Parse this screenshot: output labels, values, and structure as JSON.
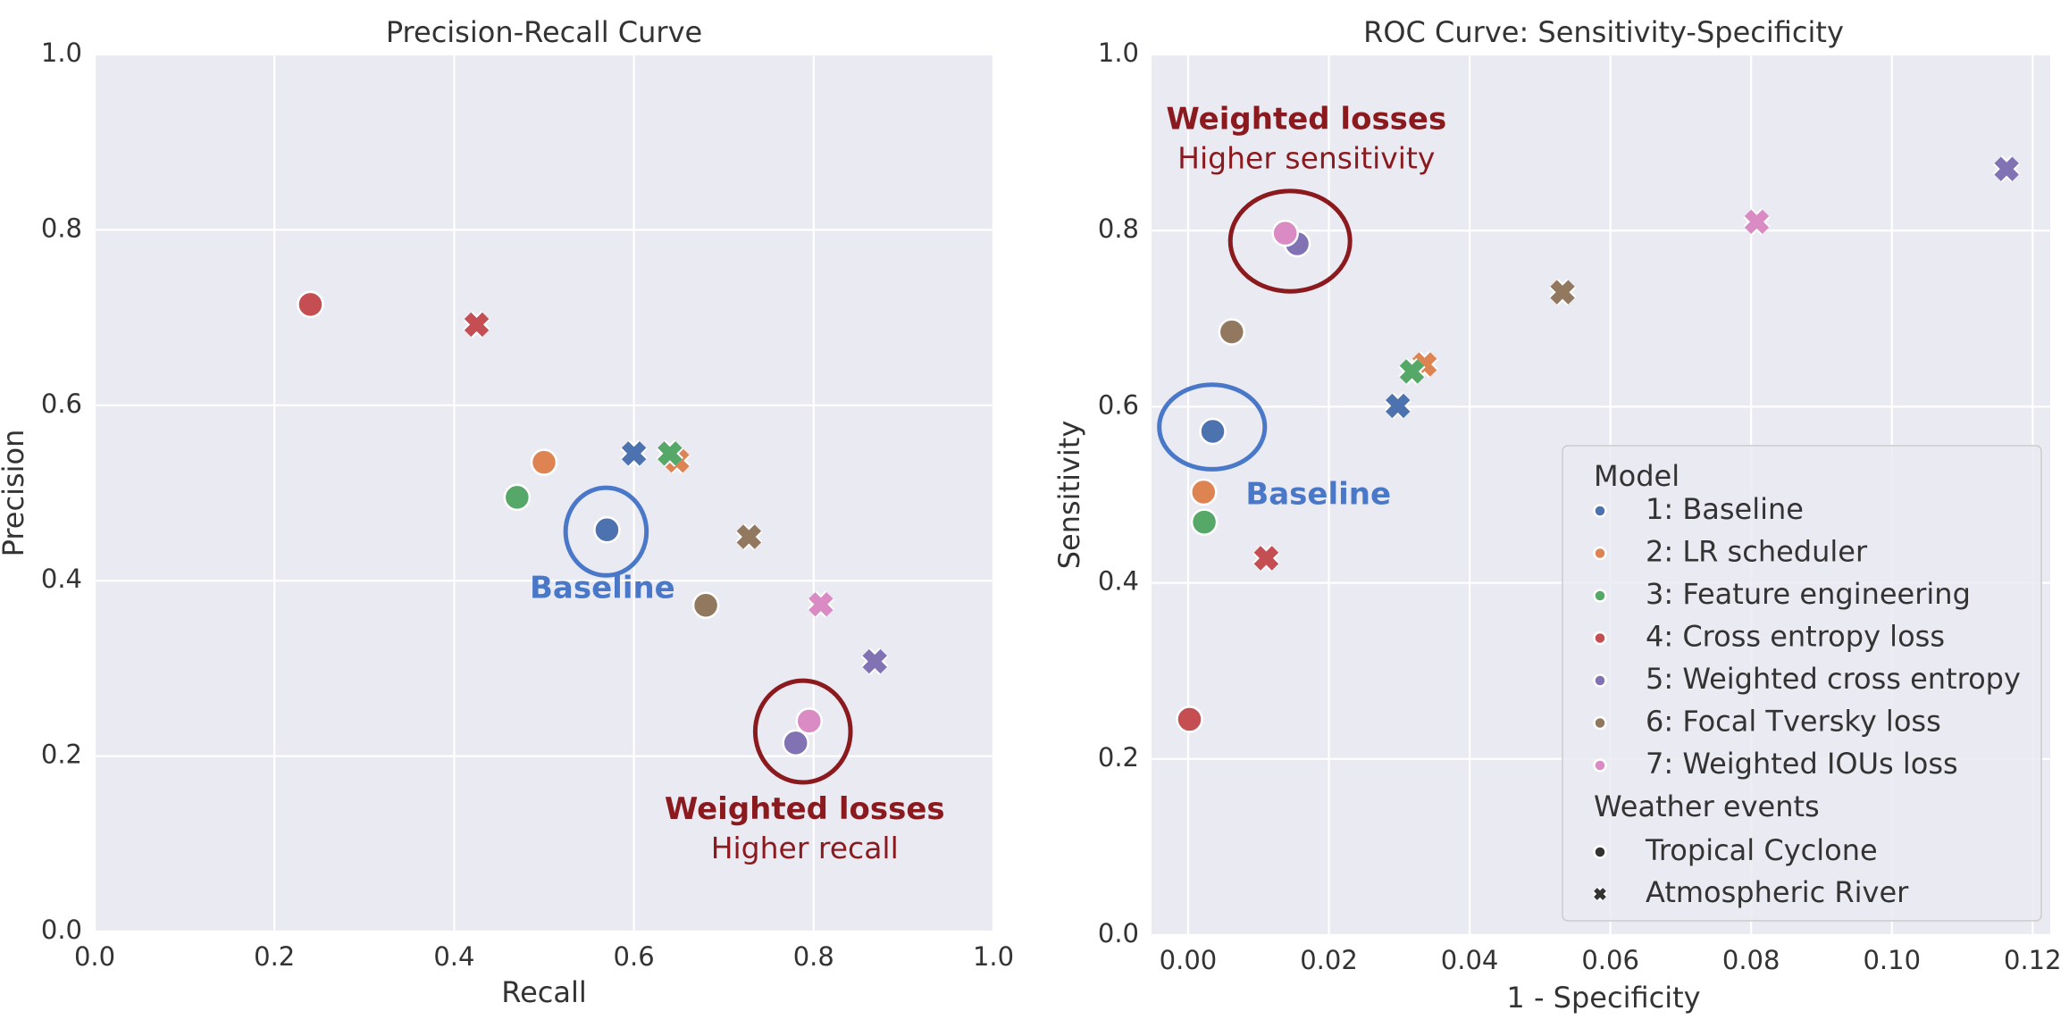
{
  "colors": {
    "1": "#4c72b0",
    "2": "#dd8452",
    "3": "#55a868",
    "4": "#c44e52",
    "5": "#8172b3",
    "6": "#937860",
    "7": "#da8bc3",
    "baseline_annotation": "#4a78c9",
    "weighted_annotation": "#8b1a1f",
    "plot_background": "#eaeaf2"
  },
  "chart_data": [
    {
      "type": "scatter",
      "title": "Precision-Recall Curve",
      "xlabel": "Recall",
      "ylabel": "Precision",
      "xlim": [
        0,
        1
      ],
      "ylim": [
        0,
        1
      ],
      "xticks": [
        0.0,
        0.2,
        0.4,
        0.6,
        0.8,
        1.0
      ],
      "xtick_labels": [
        "0.0",
        "0.2",
        "0.4",
        "0.6",
        "0.8",
        "1.0"
      ],
      "yticks": [
        0.0,
        0.2,
        0.4,
        0.6,
        0.8,
        1.0
      ],
      "ytick_labels": [
        "0.0",
        "0.2",
        "0.4",
        "0.6",
        "0.8",
        "1.0"
      ],
      "grid": true,
      "points": [
        {
          "model": "1",
          "event": "Tropical Cyclone",
          "x": 0.57,
          "y": 0.458
        },
        {
          "model": "2",
          "event": "Tropical Cyclone",
          "x": 0.5,
          "y": 0.535
        },
        {
          "model": "3",
          "event": "Tropical Cyclone",
          "x": 0.47,
          "y": 0.495
        },
        {
          "model": "4",
          "event": "Tropical Cyclone",
          "x": 0.24,
          "y": 0.715
        },
        {
          "model": "5",
          "event": "Tropical Cyclone",
          "x": 0.78,
          "y": 0.215
        },
        {
          "model": "6",
          "event": "Tropical Cyclone",
          "x": 0.68,
          "y": 0.372
        },
        {
          "model": "7",
          "event": "Tropical Cyclone",
          "x": 0.795,
          "y": 0.24
        },
        {
          "model": "1",
          "event": "Atmospheric River",
          "x": 0.6,
          "y": 0.545
        },
        {
          "model": "2",
          "event": "Atmospheric River",
          "x": 0.648,
          "y": 0.537
        },
        {
          "model": "3",
          "event": "Atmospheric River",
          "x": 0.64,
          "y": 0.545
        },
        {
          "model": "4",
          "event": "Atmospheric River",
          "x": 0.425,
          "y": 0.692
        },
        {
          "model": "5",
          "event": "Atmospheric River",
          "x": 0.868,
          "y": 0.308
        },
        {
          "model": "6",
          "event": "Atmospheric River",
          "x": 0.728,
          "y": 0.45
        },
        {
          "model": "7",
          "event": "Atmospheric River",
          "x": 0.808,
          "y": 0.373
        }
      ],
      "annotations": [
        {
          "id": "baseline",
          "circle_center": [
            0.569,
            0.456
          ],
          "circle_radius": [
            0.045,
            0.05
          ],
          "label": "Baseline",
          "label_at": [
            0.565,
            0.39
          ]
        },
        {
          "id": "weighted",
          "circle_center": [
            0.788,
            0.228
          ],
          "circle_radius": [
            0.053,
            0.058
          ],
          "label": "Weighted losses",
          "sublabel": "Higher recall",
          "label_at": [
            0.79,
            0.138
          ]
        }
      ]
    },
    {
      "type": "scatter",
      "title": "ROC Curve: Sensitivity-Specificity",
      "xlabel": "1 - Specificity",
      "ylabel": "Sensitivity",
      "xlim": [
        -0.0052,
        0.1225
      ],
      "ylim": [
        0,
        1
      ],
      "xticks": [
        0.0,
        0.02,
        0.04,
        0.06,
        0.08,
        0.1,
        0.12
      ],
      "xtick_labels": [
        "0.00",
        "0.02",
        "0.04",
        "0.06",
        "0.08",
        "0.10",
        "0.12"
      ],
      "yticks": [
        0.0,
        0.2,
        0.4,
        0.6,
        0.8,
        1.0
      ],
      "ytick_labels": [
        "0.0",
        "0.2",
        "0.4",
        "0.6",
        "0.8",
        "1.0"
      ],
      "grid": true,
      "points": [
        {
          "model": "1",
          "event": "Tropical Cyclone",
          "x": 0.0035,
          "y": 0.572
        },
        {
          "model": "2",
          "event": "Tropical Cyclone",
          "x": 0.0022,
          "y": 0.503
        },
        {
          "model": "3",
          "event": "Tropical Cyclone",
          "x": 0.0023,
          "y": 0.469
        },
        {
          "model": "4",
          "event": "Tropical Cyclone",
          "x": 0.0002,
          "y": 0.245
        },
        {
          "model": "5",
          "event": "Tropical Cyclone",
          "x": 0.0155,
          "y": 0.785
        },
        {
          "model": "6",
          "event": "Tropical Cyclone",
          "x": 0.0062,
          "y": 0.685
        },
        {
          "model": "7",
          "event": "Tropical Cyclone",
          "x": 0.0138,
          "y": 0.797
        },
        {
          "model": "1",
          "event": "Atmospheric River",
          "x": 0.0298,
          "y": 0.601
        },
        {
          "model": "2",
          "event": "Atmospheric River",
          "x": 0.0336,
          "y": 0.648
        },
        {
          "model": "3",
          "event": "Atmospheric River",
          "x": 0.0318,
          "y": 0.64
        },
        {
          "model": "4",
          "event": "Atmospheric River",
          "x": 0.0111,
          "y": 0.428
        },
        {
          "model": "5",
          "event": "Atmospheric River",
          "x": 0.1163,
          "y": 0.87
        },
        {
          "model": "6",
          "event": "Atmospheric River",
          "x": 0.0532,
          "y": 0.73
        },
        {
          "model": "7",
          "event": "Atmospheric River",
          "x": 0.0808,
          "y": 0.81
        }
      ],
      "annotations": [
        {
          "id": "baseline",
          "circle_center": [
            0.0034,
            0.577
          ],
          "circle_radius": [
            0.0075,
            0.048
          ],
          "label": "Baseline",
          "label_at": [
            0.0185,
            0.499
          ]
        },
        {
          "id": "weighted",
          "circle_center": [
            0.0145,
            0.788
          ],
          "circle_radius": [
            0.0085,
            0.057
          ],
          "label": "Weighted losses",
          "sublabel": "Higher sensitivity",
          "label_at": [
            0.0168,
            0.925
          ]
        }
      ]
    }
  ],
  "legend": {
    "placement": "lower-right",
    "model_title": "Model",
    "models": [
      {
        "key": "1",
        "label": "1: Baseline"
      },
      {
        "key": "2",
        "label": "2: LR scheduler"
      },
      {
        "key": "3",
        "label": "3: Feature engineering"
      },
      {
        "key": "4",
        "label": "4: Cross entropy loss"
      },
      {
        "key": "5",
        "label": "5: Weighted cross entropy"
      },
      {
        "key": "6",
        "label": "6: Focal Tversky loss"
      },
      {
        "key": "7",
        "label": "7: Weighted IOUs loss"
      }
    ],
    "events_title": "Weather events",
    "events": [
      {
        "label": "Tropical Cyclone",
        "marker": "circle"
      },
      {
        "label": "Atmospheric River",
        "marker": "x"
      }
    ]
  }
}
